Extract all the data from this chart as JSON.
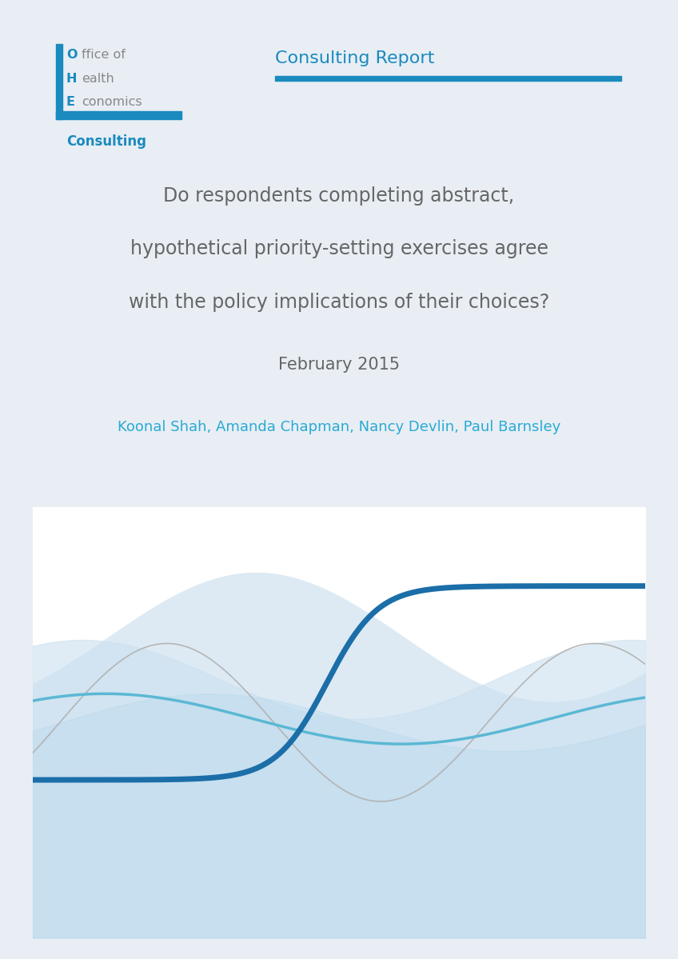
{
  "page_bg": "#e8eef4",
  "card_bg": "#ffffff",
  "title_line1": "Do respondents completing abstract,",
  "title_line2": "hypothetical priority-setting exercises agree",
  "title_line3": "with the policy implications of their choices?",
  "date": "February 2015",
  "authors": "Koonal Shah, Amanda Chapman, Nancy Devlin, Paul Barnsley",
  "report_type": "Consulting Report",
  "logo_color_blue": "#1a8abf",
  "logo_color_gray": "#888888",
  "header_line_color": "#1a8abf",
  "title_color": "#666666",
  "authors_color": "#29aad4",
  "wave_fill_light": "#cce0ef",
  "wave_fill_medium": "#ddeaf4",
  "wave_dark_blue": "#1b6ea8",
  "wave_medium_blue": "#5bb8d4",
  "wave_light_blue_fill": "#b8d9ed",
  "wave_gray": "#b0b0b0",
  "wave_white": "#ffffff"
}
